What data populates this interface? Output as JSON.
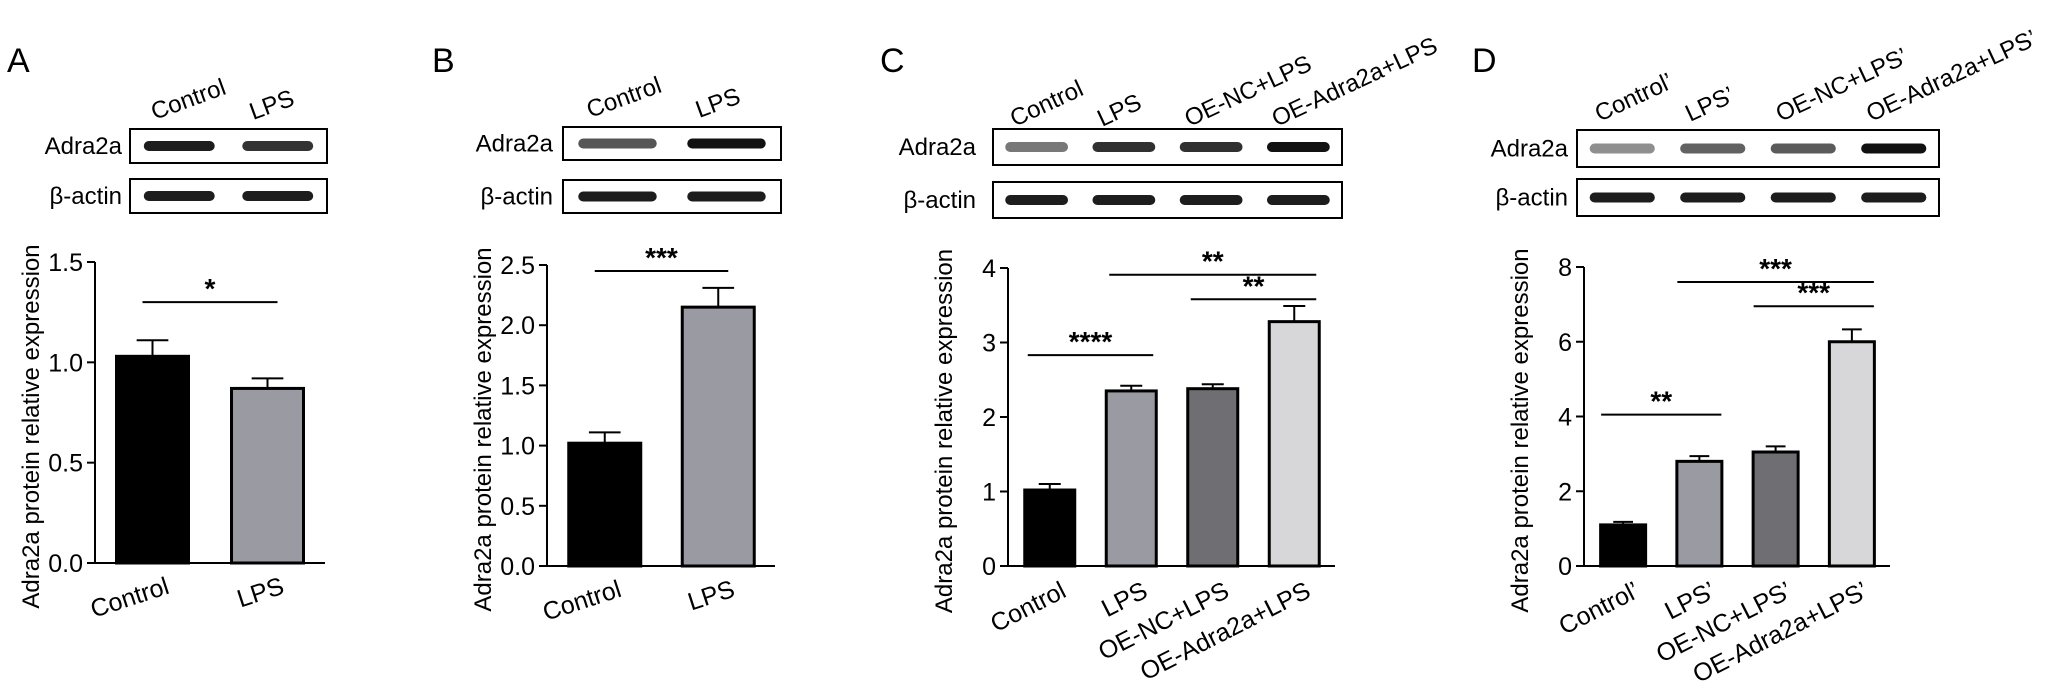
{
  "figure": {
    "panels": [
      "A",
      "B",
      "C",
      "D"
    ],
    "blot_rows": [
      "Adra2a",
      "β-actin"
    ]
  },
  "chart_data": [
    {
      "type": "bar",
      "panel": "A",
      "categories": [
        "Control",
        "LPS"
      ],
      "lane_labels": [
        "Control",
        "LPS"
      ],
      "values": [
        1.03,
        0.87
      ],
      "errors": [
        0.08,
        0.05
      ],
      "ylabel": "Adra2a protein relative expression",
      "ylim": [
        0,
        1.5
      ],
      "yticks": [
        0.0,
        0.5,
        1.0,
        1.5
      ],
      "ytick_labels": [
        "0.0",
        "0.5",
        "1.0",
        "1.5"
      ],
      "bar_colors": [
        "#000000",
        "#9a9ba2"
      ],
      "significance": [
        {
          "from": 0,
          "to": 1,
          "label": "*",
          "y": 1.3
        }
      ]
    },
    {
      "type": "bar",
      "panel": "B",
      "categories": [
        "Control",
        "LPS"
      ],
      "lane_labels": [
        "Control",
        "LPS"
      ],
      "values": [
        1.02,
        2.15
      ],
      "errors": [
        0.09,
        0.16
      ],
      "ylabel": "Adra2a protein relative expression",
      "ylim": [
        0,
        2.5
      ],
      "yticks": [
        0.0,
        0.5,
        1.0,
        1.5,
        2.0,
        2.5
      ],
      "ytick_labels": [
        "0.0",
        "0.5",
        "1.0",
        "1.5",
        "2.0",
        "2.5"
      ],
      "bar_colors": [
        "#000000",
        "#9a9ba2"
      ],
      "significance": [
        {
          "from": 0,
          "to": 1,
          "label": "***",
          "y": 2.45
        }
      ]
    },
    {
      "type": "bar",
      "panel": "C",
      "categories": [
        "Control",
        "LPS",
        "OE-NC+LPS",
        "OE-Adra2a+LPS"
      ],
      "lane_labels": [
        "Control",
        "LPS",
        "OE-NC+LPS",
        "OE-Adra2a+LPS"
      ],
      "values": [
        1.02,
        2.35,
        2.38,
        3.28
      ],
      "errors": [
        0.08,
        0.07,
        0.06,
        0.21
      ],
      "ylabel": "Adra2a protein relative expression",
      "ylim": [
        0,
        4
      ],
      "yticks": [
        0,
        1,
        2,
        3,
        4
      ],
      "ytick_labels": [
        "0",
        "1",
        "2",
        "3",
        "4"
      ],
      "bar_colors": [
        "#000000",
        "#9a9ba2",
        "#6f6f73",
        "#d7d7d9"
      ],
      "significance": [
        {
          "from": 0,
          "to": 1,
          "label": "****",
          "y": 2.83
        },
        {
          "from": 2,
          "to": 3,
          "label": "**",
          "y": 3.58
        },
        {
          "from": 1,
          "to": 3,
          "label": "**",
          "y": 3.91
        }
      ]
    },
    {
      "type": "bar",
      "panel": "D",
      "categories": [
        "Control’",
        "LPS’",
        "OE-NC+LPS’",
        "OE-Adra2a+LPS’"
      ],
      "lane_labels": [
        "Control’",
        "LPS’",
        "OE-NC+LPS’",
        "OE-Adra2a+LPS’"
      ],
      "values": [
        1.1,
        2.8,
        3.05,
        6.0
      ],
      "errors": [
        0.08,
        0.14,
        0.15,
        0.33
      ],
      "ylabel": "Adra2a protein relative expression",
      "ylim": [
        0,
        8
      ],
      "yticks": [
        0,
        2,
        4,
        6,
        8
      ],
      "ytick_labels": [
        "0",
        "2",
        "4",
        "6",
        "8"
      ],
      "bar_colors": [
        "#000000",
        "#9a9ba2",
        "#6f6f73",
        "#d7d7d9"
      ],
      "significance": [
        {
          "from": 0,
          "to": 1,
          "label": "**",
          "y": 4.05
        },
        {
          "from": 2,
          "to": 3,
          "label": "***",
          "y": 6.95
        },
        {
          "from": 1,
          "to": 3,
          "label": "***",
          "y": 7.6
        }
      ]
    }
  ]
}
